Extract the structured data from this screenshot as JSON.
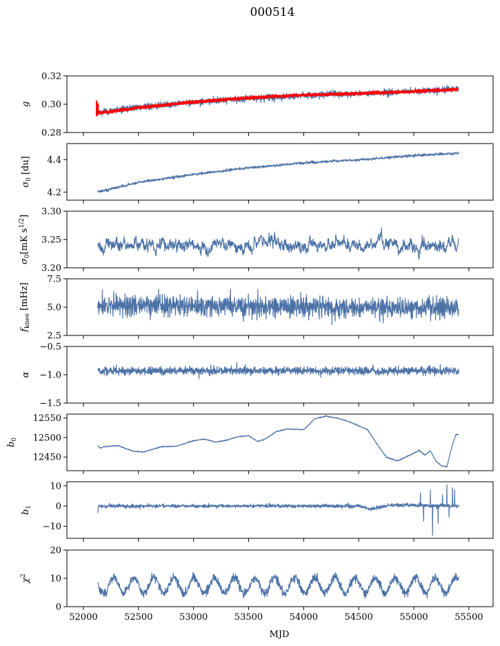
{
  "figure": {
    "title": "000514",
    "xlabel": "MJD",
    "x_ticks": [
      "52000",
      "52500",
      "53000",
      "53500",
      "54000",
      "54500",
      "55000",
      "55500"
    ]
  },
  "colors": {
    "series": "#4c72a6",
    "overlay": "#ff0000",
    "axis": "#000000"
  },
  "chart_data": [
    {
      "type": "line",
      "ylabel": "g",
      "ylim": [
        0.28,
        0.32
      ],
      "y_ticks": [
        "0.28",
        "0.30",
        "0.32"
      ],
      "x_ticks_visible": false,
      "xlim": [
        51850,
        55720
      ],
      "series": [
        {
          "name": "g",
          "x_range": [
            52130,
            55410
          ],
          "trend": [
            [
              52130,
              0.294
            ],
            [
              52500,
              0.298
            ],
            [
              53000,
              0.3015
            ],
            [
              53500,
              0.304
            ],
            [
              54000,
              0.306
            ],
            [
              54500,
              0.3075
            ],
            [
              55000,
              0.309
            ],
            [
              55410,
              0.311
            ]
          ],
          "noise": 0.0012
        },
        {
          "name": "g fit",
          "color": "red",
          "x_range": [
            52120,
            55400
          ],
          "trend": [
            [
              52120,
              0.2935
            ],
            [
              52500,
              0.2975
            ],
            [
              53000,
              0.3015
            ],
            [
              53500,
              0.3045
            ],
            [
              54000,
              0.3065
            ],
            [
              54500,
              0.3075
            ],
            [
              55000,
              0.309
            ],
            [
              55400,
              0.3105
            ]
          ],
          "noise": 0.0004,
          "spike": [
            52120,
            0.2915,
            0.3025
          ]
        }
      ]
    },
    {
      "type": "line",
      "ylabel": "σ0 [du]",
      "ylim": [
        4.15,
        4.5
      ],
      "y_ticks": [
        "4.2",
        "4.4"
      ],
      "y_tick_values": [
        4.2,
        4.4
      ],
      "x_ticks_visible": false,
      "xlim": [
        51850,
        55720
      ],
      "series": [
        {
          "name": "sigma0",
          "x_range": [
            52130,
            55410
          ],
          "trend": [
            [
              52130,
              4.2
            ],
            [
              52500,
              4.26
            ],
            [
              53000,
              4.31
            ],
            [
              53500,
              4.35
            ],
            [
              54000,
              4.38
            ],
            [
              54500,
              4.4
            ],
            [
              55000,
              4.425
            ],
            [
              55410,
              4.44
            ]
          ],
          "noise": 0.004
        }
      ]
    },
    {
      "type": "line",
      "ylabel": "σ0[mK s1/2]",
      "ylim": [
        3.2,
        3.3
      ],
      "y_ticks": [
        "3.20",
        "3.25",
        "3.30"
      ],
      "x_ticks_visible": false,
      "xlim": [
        51850,
        55720
      ],
      "series": [
        {
          "name": "sigma0_mK",
          "x_range": [
            52130,
            55410
          ],
          "trend": [
            [
              52130,
              3.24
            ],
            [
              55410,
              3.24
            ]
          ],
          "noise": 0.008,
          "smooth": 6
        }
      ]
    },
    {
      "type": "line",
      "ylabel": "fknee [mHz]",
      "ylim": [
        2.5,
        7.5
      ],
      "y_ticks": [
        "2.5",
        "5.0",
        "7.5"
      ],
      "x_ticks_visible": false,
      "xlim": [
        51850,
        55720
      ],
      "series": [
        {
          "name": "fknee",
          "x_range": [
            52130,
            55410
          ],
          "trend": [
            [
              52130,
              5.2
            ],
            [
              55410,
              4.9
            ]
          ],
          "noise": 0.45
        }
      ]
    },
    {
      "type": "line",
      "ylabel": "α",
      "ylim": [
        -1.5,
        -0.5
      ],
      "y_ticks": [
        "−1.5",
        "−1.0",
        "−0.5"
      ],
      "x_ticks_visible": false,
      "xlim": [
        51850,
        55720
      ],
      "series": [
        {
          "name": "alpha",
          "x_range": [
            52130,
            55410
          ],
          "trend": [
            [
              52130,
              -0.93
            ],
            [
              55410,
              -0.93
            ]
          ],
          "noise": 0.035
        }
      ]
    },
    {
      "type": "line",
      "ylabel": "b0",
      "ylim": [
        12415,
        12560
      ],
      "y_ticks": [
        "12450",
        "12500",
        "12550"
      ],
      "y_tick_values": [
        12450,
        12500,
        12550
      ],
      "x_ticks_visible": false,
      "xlim": [
        51850,
        55720
      ],
      "series": [
        {
          "name": "b0",
          "x_range": [
            52130,
            55410
          ],
          "trend": [
            [
              52130,
              12480
            ],
            [
              52150,
              12473
            ],
            [
              52200,
              12477
            ],
            [
              52320,
              12479
            ],
            [
              52450,
              12465
            ],
            [
              52550,
              12463
            ],
            [
              52700,
              12476
            ],
            [
              52850,
              12478
            ],
            [
              53000,
              12492
            ],
            [
              53100,
              12496
            ],
            [
              53200,
              12488
            ],
            [
              53300,
              12493
            ],
            [
              53400,
              12502
            ],
            [
              53500,
              12505
            ],
            [
              53580,
              12490
            ],
            [
              53650,
              12496
            ],
            [
              53750,
              12515
            ],
            [
              53850,
              12522
            ],
            [
              54000,
              12520
            ],
            [
              54100,
              12548
            ],
            [
              54200,
              12555
            ],
            [
              54300,
              12550
            ],
            [
              54400,
              12542
            ],
            [
              54500,
              12530
            ],
            [
              54580,
              12520
            ],
            [
              54650,
              12490
            ],
            [
              54750,
              12450
            ],
            [
              54850,
              12440
            ],
            [
              55000,
              12460
            ],
            [
              55050,
              12467
            ],
            [
              55100,
              12455
            ],
            [
              55150,
              12466
            ],
            [
              55200,
              12440
            ],
            [
              55250,
              12428
            ],
            [
              55300,
              12425
            ],
            [
              55340,
              12470
            ],
            [
              55380,
              12507
            ],
            [
              55410,
              12508
            ]
          ],
          "noise": 0.6
        }
      ]
    },
    {
      "type": "line",
      "ylabel": "b1",
      "ylim": [
        -16,
        12
      ],
      "y_ticks": [
        "−10",
        "0",
        "10"
      ],
      "y_tick_values": [
        -10,
        0,
        10
      ],
      "x_ticks_visible": false,
      "xlim": [
        51850,
        55720
      ],
      "series": [
        {
          "name": "b1",
          "x_range": [
            52130,
            55410
          ],
          "trend": [
            [
              52130,
              0
            ],
            [
              54500,
              0
            ],
            [
              54600,
              -1.5
            ],
            [
              54800,
              0.5
            ],
            [
              55410,
              0
            ]
          ],
          "noise": 0.45,
          "start_dip": -3.5,
          "bursts": [
            [
              55060,
              6.5
            ],
            [
              55090,
              -7.5
            ],
            [
              55150,
              8.0
            ],
            [
              55170,
              -14.5
            ],
            [
              55210,
              -1.5
            ],
            [
              55220,
              -8.5
            ],
            [
              55260,
              5.5
            ],
            [
              55300,
              10.5
            ],
            [
              55320,
              -5.5
            ],
            [
              55350,
              9.0
            ],
            [
              55370,
              8.0
            ],
            [
              55390,
              -1.0
            ]
          ]
        }
      ]
    },
    {
      "type": "line",
      "ylabel": "χ2",
      "ylim": [
        0,
        20
      ],
      "y_ticks": [
        "0",
        "10",
        "20"
      ],
      "x_ticks_visible": true,
      "xlim": [
        51850,
        55720
      ],
      "series": [
        {
          "name": "chi2",
          "x_range": [
            52130,
            55410
          ],
          "baseline": 7.5,
          "amplitude": 2.8,
          "period": 182.6,
          "phase": 52230,
          "noise": 0.75
        }
      ]
    }
  ]
}
